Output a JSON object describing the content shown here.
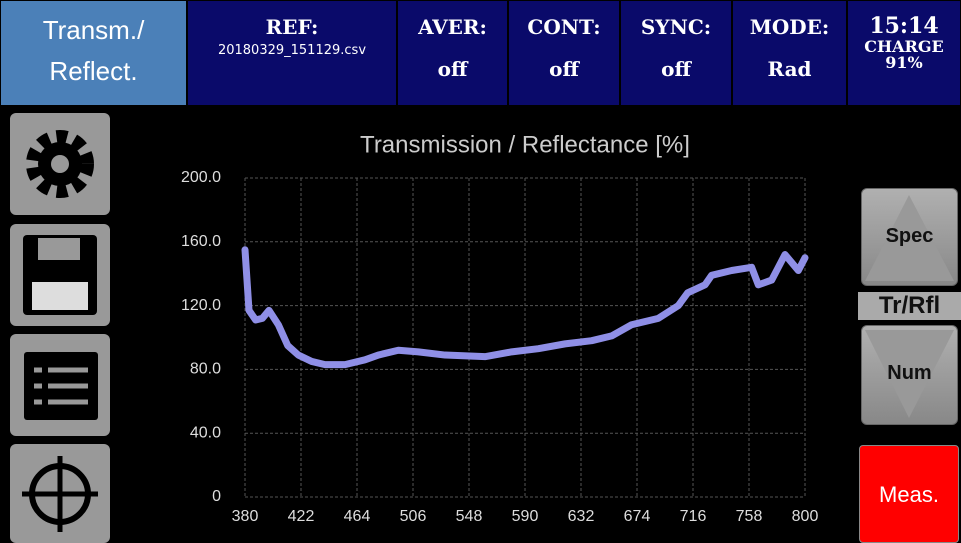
{
  "header": {
    "mode": [
      "Transm./",
      "Reflect."
    ],
    "cells": [
      {
        "label": "REF:",
        "value": "20180329_151129.csv"
      },
      {
        "label": "AVER:",
        "value": "off"
      },
      {
        "label": "CONT:",
        "value": "off"
      },
      {
        "label": "SYNC:",
        "value": "off"
      },
      {
        "label": "MODE:",
        "value": "Rad"
      }
    ],
    "clock": "15:14",
    "charge_label": "CHARGE",
    "charge": "91%"
  },
  "right_panel": {
    "spec": "Spec",
    "view": "Tr/Rfl",
    "num": "Num",
    "measure": "Meas."
  },
  "chart_data": {
    "type": "line",
    "title": "Transmission / Reflectance [%]",
    "x": [
      380,
      383,
      388,
      393,
      398,
      405,
      412,
      420,
      430,
      440,
      455,
      470,
      480,
      495,
      510,
      530,
      560,
      580,
      600,
      620,
      640,
      655,
      670,
      690,
      705,
      712,
      725,
      730,
      745,
      760,
      765,
      775,
      785,
      795,
      800
    ],
    "series": [
      {
        "name": "Transmission / Reflectance",
        "color": "#8f8fe6",
        "values": [
          155,
          117,
          111,
          112,
          117,
          108,
          95,
          89,
          85,
          83,
          83,
          86,
          89,
          92,
          91,
          89,
          88,
          91,
          93,
          96,
          98,
          101,
          108,
          112,
          120,
          128,
          133,
          139,
          142,
          144,
          133,
          136,
          152,
          142,
          150
        ]
      }
    ],
    "xlim": [
      380,
      800
    ],
    "xticks": [
      380,
      422,
      464,
      506,
      548,
      590,
      632,
      674,
      716,
      758,
      800
    ],
    "ylim": [
      0,
      200
    ],
    "yticks": [
      0,
      {
        "value": 40,
        "label": "40.0"
      },
      {
        "value": 80,
        "label": "80.0"
      },
      {
        "value": 120,
        "label": "120.0"
      },
      {
        "value": 160,
        "label": "160.0"
      },
      {
        "value": 200,
        "label": "200.0"
      }
    ],
    "grid": true
  }
}
